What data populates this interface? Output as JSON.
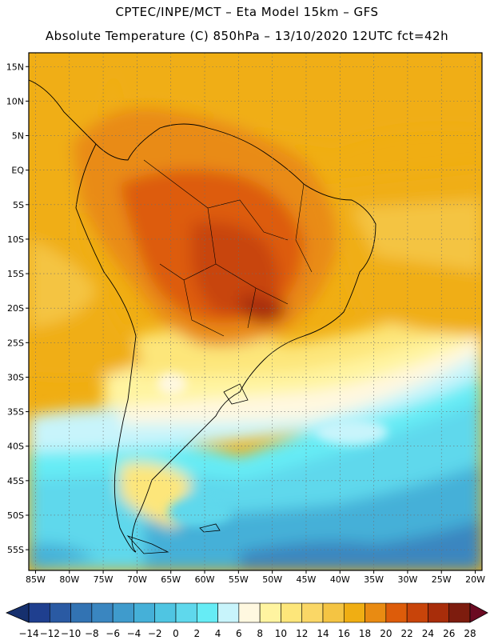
{
  "header": {
    "line1": "CPTEC/INPE/MCT –  Eta Model 15km – GFS",
    "line2": "Absolute Temperature (C) 850hPa – 13/10/2020 12UTC fct=42h"
  },
  "chart_data": {
    "type": "heatmap",
    "title": "Absolute Temperature (C) 850hPa – 13/10/2020 12UTC fct=42h",
    "variable": "Absolute Temperature (C)",
    "level": "850hPa",
    "model": "Eta Model 15km – GFS",
    "run": "13/10/2020 12UTC",
    "forecast": "fct=42h",
    "x_range": [
      -86,
      -19
    ],
    "y_range": [
      -58,
      17
    ],
    "lat_ticks": [
      15,
      10,
      5,
      0,
      -5,
      -10,
      -15,
      -20,
      -25,
      -30,
      -35,
      -40,
      -45,
      -50,
      -55
    ],
    "lat_labels": [
      "15N",
      "10N",
      "5N",
      "EQ",
      "5S",
      "10S",
      "15S",
      "20S",
      "25S",
      "30S",
      "35S",
      "40S",
      "45S",
      "50S",
      "55S"
    ],
    "lon_ticks": [
      -85,
      -80,
      -75,
      -70,
      -65,
      -60,
      -55,
      -50,
      -45,
      -40,
      -35,
      -30,
      -25,
      -20
    ],
    "lon_labels": [
      "85W",
      "80W",
      "75W",
      "70W",
      "65W",
      "60W",
      "55W",
      "50W",
      "45W",
      "40W",
      "35W",
      "30W",
      "25W",
      "20W"
    ],
    "colorbar": {
      "ticks": [
        -14,
        -12,
        -10,
        -8,
        -6,
        -4,
        -2,
        0,
        2,
        4,
        6,
        8,
        10,
        12,
        14,
        16,
        18,
        20,
        22,
        24,
        26,
        28
      ],
      "tick_labels": [
        "−14",
        "−12",
        "−10",
        "−8",
        "−6",
        "−4",
        "−2",
        "0",
        "2",
        "4",
        "6",
        "8",
        "10",
        "12",
        "14",
        "16",
        "18",
        "20",
        "22",
        "24",
        "26",
        "28"
      ],
      "colors": [
        "#1f3f8f",
        "#2a5aa3",
        "#3273b3",
        "#3a86c0",
        "#3f9bcc",
        "#45b0d8",
        "#4fc5e2",
        "#5fd8ec",
        "#66ecf5",
        "#c8f4fb",
        "#fff8e0",
        "#fff4a0",
        "#fde67a",
        "#fad766",
        "#f4c443",
        "#f0ae13",
        "#e98b12",
        "#dd5c0a",
        "#c8440a",
        "#a82d0a",
        "#7d1c0e"
      ],
      "under_color": "#16306e",
      "over_color": "#6b0a22"
    }
  }
}
